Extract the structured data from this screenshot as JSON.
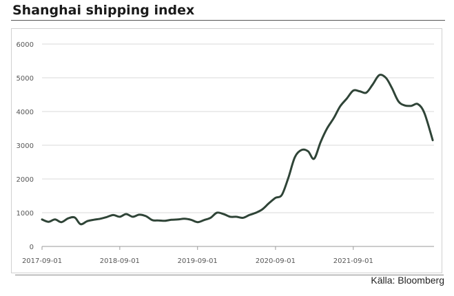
{
  "title": "Shanghai shipping index",
  "source": "Källa: Bloomberg",
  "colors": {
    "line": "#2f4437",
    "grid": "#d9d9d9",
    "axis": "#9a9a9a"
  },
  "chart_data": {
    "type": "line",
    "title": "Shanghai shipping index",
    "xlabel": "",
    "ylabel": "",
    "ylim": [
      0,
      6000
    ],
    "xlim": [
      "2017-09-01",
      "2022-09-15"
    ],
    "yticks": [
      0,
      1000,
      2000,
      3000,
      4000,
      5000,
      6000
    ],
    "xticks": [
      "2017-09-01",
      "2018-09-01",
      "2019-09-01",
      "2020-09-01",
      "2021-09-01"
    ],
    "grid": "horizontal",
    "legend": "none",
    "series": [
      {
        "values": [
          [
            "2017-09-01",
            800
          ],
          [
            "2017-10-01",
            730
          ],
          [
            "2017-11-01",
            800
          ],
          [
            "2017-12-01",
            720
          ],
          [
            "2018-01-01",
            830
          ],
          [
            "2018-02-01",
            860
          ],
          [
            "2018-03-01",
            660
          ],
          [
            "2018-04-01",
            750
          ],
          [
            "2018-05-01",
            790
          ],
          [
            "2018-06-01",
            820
          ],
          [
            "2018-07-01",
            870
          ],
          [
            "2018-08-01",
            930
          ],
          [
            "2018-09-01",
            880
          ],
          [
            "2018-10-01",
            960
          ],
          [
            "2018-11-01",
            880
          ],
          [
            "2018-12-01",
            940
          ],
          [
            "2019-01-01",
            900
          ],
          [
            "2019-02-01",
            780
          ],
          [
            "2019-03-01",
            770
          ],
          [
            "2019-04-01",
            760
          ],
          [
            "2019-05-01",
            790
          ],
          [
            "2019-06-01",
            800
          ],
          [
            "2019-07-01",
            820
          ],
          [
            "2019-08-01",
            790
          ],
          [
            "2019-09-01",
            720
          ],
          [
            "2019-10-01",
            780
          ],
          [
            "2019-11-01",
            850
          ],
          [
            "2019-12-01",
            1000
          ],
          [
            "2020-01-01",
            960
          ],
          [
            "2020-02-01",
            880
          ],
          [
            "2020-03-01",
            880
          ],
          [
            "2020-04-01",
            850
          ],
          [
            "2020-05-01",
            930
          ],
          [
            "2020-06-01",
            1000
          ],
          [
            "2020-07-01",
            1100
          ],
          [
            "2020-08-01",
            1280
          ],
          [
            "2020-09-01",
            1440
          ],
          [
            "2020-10-01",
            1530
          ],
          [
            "2020-11-01",
            2050
          ],
          [
            "2020-12-01",
            2650
          ],
          [
            "2021-01-01",
            2860
          ],
          [
            "2021-02-01",
            2820
          ],
          [
            "2021-03-01",
            2600
          ],
          [
            "2021-04-01",
            3100
          ],
          [
            "2021-05-01",
            3500
          ],
          [
            "2021-06-01",
            3800
          ],
          [
            "2021-07-01",
            4150
          ],
          [
            "2021-08-01",
            4380
          ],
          [
            "2021-09-01",
            4620
          ],
          [
            "2021-10-01",
            4600
          ],
          [
            "2021-11-01",
            4560
          ],
          [
            "2021-12-01",
            4800
          ],
          [
            "2022-01-01",
            5080
          ],
          [
            "2022-02-01",
            5000
          ],
          [
            "2022-03-01",
            4700
          ],
          [
            "2022-04-01",
            4300
          ],
          [
            "2022-05-01",
            4180
          ],
          [
            "2022-06-01",
            4170
          ],
          [
            "2022-07-01",
            4220
          ],
          [
            "2022-08-01",
            3950
          ],
          [
            "2022-09-09",
            3150
          ]
        ]
      }
    ]
  }
}
